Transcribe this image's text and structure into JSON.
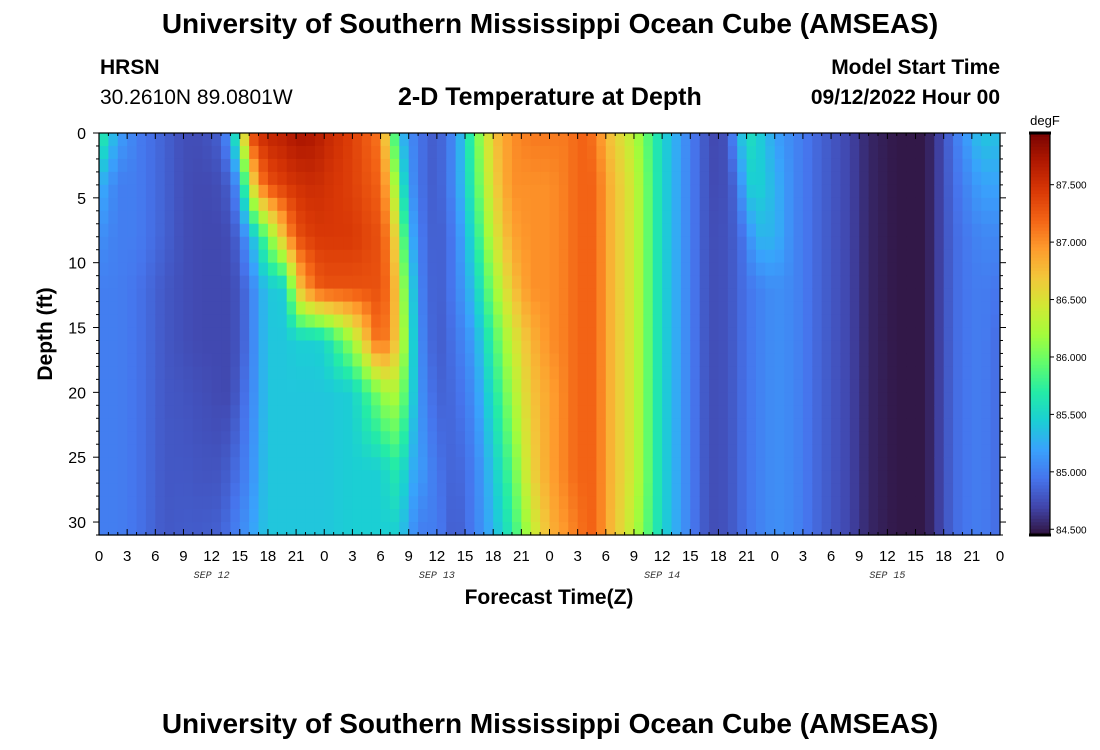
{
  "header": {
    "title": "University of Southern Mississippi Ocean Cube (AMSEAS)",
    "station_name": "HRSN",
    "station_coords": "30.2610N  89.0801W",
    "chart_title": "2-D Temperature at Depth",
    "model_start_label": "Model Start Time",
    "model_start_value": "09/12/2022 Hour 00"
  },
  "footer": {
    "title": "University of Southern Mississippi Ocean Cube (AMSEAS)"
  },
  "chart_data": {
    "type": "heatmap",
    "title": "2-D Temperature at Depth",
    "xlabel": "Forecast Time(Z)",
    "ylabel": "Depth (ft)",
    "x_range_hours": [
      0,
      96
    ],
    "y_range_ft": [
      0,
      31
    ],
    "x_tick_labels": [
      "0",
      "3",
      "6",
      "9",
      "12",
      "15",
      "18",
      "21",
      "0",
      "3",
      "6",
      "9",
      "12",
      "15",
      "18",
      "21",
      "0",
      "3",
      "6",
      "9",
      "12",
      "15",
      "18",
      "21",
      "0",
      "3",
      "6",
      "9",
      "12",
      "15",
      "18",
      "21",
      "0"
    ],
    "y_ticks": [
      0,
      5,
      10,
      15,
      20,
      25,
      30
    ],
    "y_tick_labels": [
      "0",
      "5",
      "10",
      "15",
      "20",
      "25",
      "30"
    ],
    "date_labels": [
      {
        "text": "SEP 12",
        "hour": 12
      },
      {
        "text": "SEP 13",
        "hour": 36
      },
      {
        "text": "SEP 14",
        "hour": 60
      },
      {
        "text": "SEP 15",
        "hour": 84
      }
    ],
    "colorbar": {
      "unit": "degF",
      "min": 84.45,
      "max": 87.95,
      "ticks": [
        84.5,
        85.0,
        85.5,
        86.0,
        86.5,
        87.0,
        87.5
      ],
      "tick_labels": [
        "84.500",
        "85.000",
        "85.500",
        "86.000",
        "86.500",
        "87.000",
        "87.500"
      ],
      "colors": [
        "#30123b",
        "#4145ab",
        "#4675ed",
        "#39a2fc",
        "#1bcfd4",
        "#24eca6",
        "#61fc6c",
        "#a4fc3b",
        "#d1e834",
        "#f3c63a",
        "#fe9b2d",
        "#f36315",
        "#d93806",
        "#b11901",
        "#7a0402"
      ]
    },
    "profile_depths_ft": [
      0,
      4,
      8,
      12,
      16,
      20,
      26,
      31
    ],
    "time_hours": [
      0,
      2,
      4,
      7,
      9,
      11,
      13,
      14,
      15,
      16,
      17,
      18,
      20,
      21,
      23,
      24,
      27,
      30,
      31,
      32,
      33,
      34,
      36,
      38,
      40,
      42,
      44,
      46,
      48,
      50,
      51,
      52,
      53,
      54,
      57,
      60,
      63,
      65,
      66,
      67,
      68,
      69,
      70,
      72,
      74,
      77,
      80,
      82,
      84,
      85,
      88,
      89,
      90,
      91,
      92,
      94,
      96
    ],
    "temperature_degF": [
      [
        85.8,
        85.3,
        85.1,
        85.0,
        85.0,
        85.0,
        85.0,
        85.0
      ],
      [
        85.2,
        85.0,
        85.0,
        85.0,
        85.0,
        85.0,
        85.0,
        85.0
      ],
      [
        85.0,
        85.0,
        85.0,
        84.95,
        84.95,
        84.95,
        84.95,
        84.95
      ],
      [
        84.85,
        84.85,
        84.85,
        84.8,
        84.8,
        84.8,
        84.8,
        84.8
      ],
      [
        84.75,
        84.75,
        84.75,
        84.75,
        84.75,
        84.78,
        84.8,
        84.82
      ],
      [
        84.75,
        84.72,
        84.72,
        84.72,
        84.72,
        84.75,
        84.78,
        84.82
      ],
      [
        84.85,
        84.75,
        84.72,
        84.72,
        84.72,
        84.72,
        84.78,
        84.85
      ],
      [
        85.2,
        84.85,
        84.75,
        84.72,
        84.72,
        84.72,
        84.85,
        84.95
      ],
      [
        86.0,
        85.2,
        84.9,
        84.8,
        84.8,
        84.85,
        84.95,
        85.05
      ],
      [
        87.3,
        86.3,
        85.2,
        84.95,
        84.95,
        85.0,
        85.05,
        85.15
      ],
      [
        87.5,
        87.0,
        85.6,
        85.2,
        85.2,
        85.2,
        85.25,
        85.3
      ],
      [
        87.6,
        87.3,
        86.0,
        85.4,
        85.4,
        85.4,
        85.4,
        85.4
      ],
      [
        87.65,
        87.45,
        86.9,
        85.45,
        85.4,
        85.4,
        85.4,
        85.4
      ],
      [
        87.75,
        87.5,
        87.3,
        86.6,
        85.45,
        85.4,
        85.4,
        85.4
      ],
      [
        87.7,
        87.55,
        87.45,
        87.2,
        85.45,
        85.4,
        85.4,
        85.4
      ],
      [
        87.6,
        87.5,
        87.45,
        87.3,
        85.5,
        85.4,
        85.4,
        85.4
      ],
      [
        87.4,
        87.4,
        87.45,
        87.3,
        86.2,
        85.45,
        85.45,
        85.45
      ],
      [
        87.1,
        87.2,
        87.3,
        87.3,
        87.3,
        86.1,
        85.45,
        85.45
      ],
      [
        86.3,
        86.7,
        87.0,
        87.1,
        86.9,
        86.3,
        85.6,
        85.45
      ],
      [
        85.4,
        85.8,
        86.3,
        86.5,
        86.6,
        86.2,
        85.7,
        85.45
      ],
      [
        85.1,
        85.2,
        85.4,
        85.7,
        85.8,
        85.7,
        85.3,
        85.2
      ],
      [
        84.95,
        84.95,
        85.0,
        85.05,
        85.1,
        85.15,
        85.2,
        85.0
      ],
      [
        84.8,
        84.8,
        84.8,
        84.8,
        84.8,
        84.85,
        84.95,
        85.0
      ],
      [
        85.1,
        85.1,
        85.0,
        85.0,
        84.95,
        84.9,
        84.85,
        84.8
      ],
      [
        85.9,
        85.8,
        85.6,
        85.4,
        85.2,
        85.1,
        85.0,
        85.0
      ],
      [
        86.7,
        86.6,
        86.4,
        86.1,
        85.8,
        85.6,
        85.4,
        85.3
      ],
      [
        87.0,
        87.0,
        86.9,
        86.7,
        86.4,
        86.2,
        85.9,
        85.7
      ],
      [
        87.1,
        87.0,
        87.0,
        87.0,
        86.8,
        86.7,
        86.6,
        86.3
      ],
      [
        87.1,
        87.0,
        87.0,
        87.0,
        87.0,
        86.9,
        86.9,
        86.8
      ],
      [
        87.1,
        87.1,
        87.1,
        87.1,
        87.1,
        87.1,
        87.1,
        87.0
      ],
      [
        87.2,
        87.2,
        87.2,
        87.2,
        87.2,
        87.2,
        87.2,
        87.1
      ],
      [
        87.2,
        87.2,
        87.2,
        87.2,
        87.2,
        87.2,
        87.2,
        87.2
      ],
      [
        87.1,
        87.2,
        87.2,
        87.2,
        87.2,
        87.2,
        87.2,
        87.2
      ],
      [
        86.8,
        86.9,
        86.9,
        86.9,
        86.9,
        86.9,
        86.9,
        86.9
      ],
      [
        86.3,
        86.4,
        86.4,
        86.4,
        86.4,
        86.4,
        86.4,
        86.3
      ],
      [
        85.5,
        85.5,
        85.5,
        85.5,
        85.5,
        85.5,
        85.5,
        85.5
      ],
      [
        85.0,
        85.0,
        85.0,
        85.0,
        85.0,
        85.0,
        85.0,
        85.0
      ],
      [
        84.75,
        84.75,
        84.75,
        84.75,
        84.75,
        84.75,
        84.75,
        84.75
      ],
      [
        84.7,
        84.72,
        84.75,
        84.75,
        84.75,
        84.75,
        84.75,
        84.75
      ],
      [
        84.8,
        84.78,
        84.78,
        84.78,
        84.78,
        84.78,
        84.78,
        84.78
      ],
      [
        85.2,
        84.9,
        84.85,
        84.85,
        84.85,
        84.85,
        84.85,
        84.85
      ],
      [
        85.6,
        85.4,
        85.0,
        84.95,
        84.95,
        84.95,
        84.95,
        84.95
      ],
      [
        85.5,
        85.5,
        85.3,
        85.0,
        85.0,
        85.0,
        85.0,
        85.0
      ],
      [
        85.2,
        85.3,
        85.3,
        85.1,
        85.1,
        85.1,
        85.1,
        85.1
      ],
      [
        85.05,
        85.05,
        85.05,
        85.05,
        85.05,
        85.05,
        85.05,
        85.05
      ],
      [
        84.85,
        84.85,
        84.85,
        84.85,
        84.85,
        84.85,
        84.85,
        84.85
      ],
      [
        84.7,
        84.7,
        84.7,
        84.7,
        84.7,
        84.7,
        84.7,
        84.7
      ],
      [
        84.55,
        84.55,
        84.55,
        84.55,
        84.55,
        84.55,
        84.55,
        84.55
      ],
      [
        84.5,
        84.5,
        84.5,
        84.5,
        84.5,
        84.5,
        84.5,
        84.5
      ],
      [
        84.48,
        84.48,
        84.48,
        84.48,
        84.48,
        84.48,
        84.48,
        84.48
      ],
      [
        84.48,
        84.48,
        84.48,
        84.48,
        84.48,
        84.48,
        84.48,
        84.48
      ],
      [
        84.6,
        84.6,
        84.6,
        84.6,
        84.6,
        84.6,
        84.6,
        84.6
      ],
      [
        84.75,
        84.75,
        84.75,
        84.75,
        84.75,
        84.75,
        84.75,
        84.75
      ],
      [
        84.95,
        84.9,
        84.88,
        84.88,
        84.88,
        84.88,
        84.88,
        84.88
      ],
      [
        85.1,
        85.0,
        84.95,
        84.95,
        84.95,
        84.95,
        84.95,
        84.95
      ],
      [
        85.4,
        85.2,
        85.05,
        85.0,
        85.0,
        85.0,
        85.0,
        85.0
      ],
      [
        85.35,
        85.2,
        85.05,
        84.95,
        84.9,
        84.9,
        84.9,
        84.9
      ]
    ]
  }
}
